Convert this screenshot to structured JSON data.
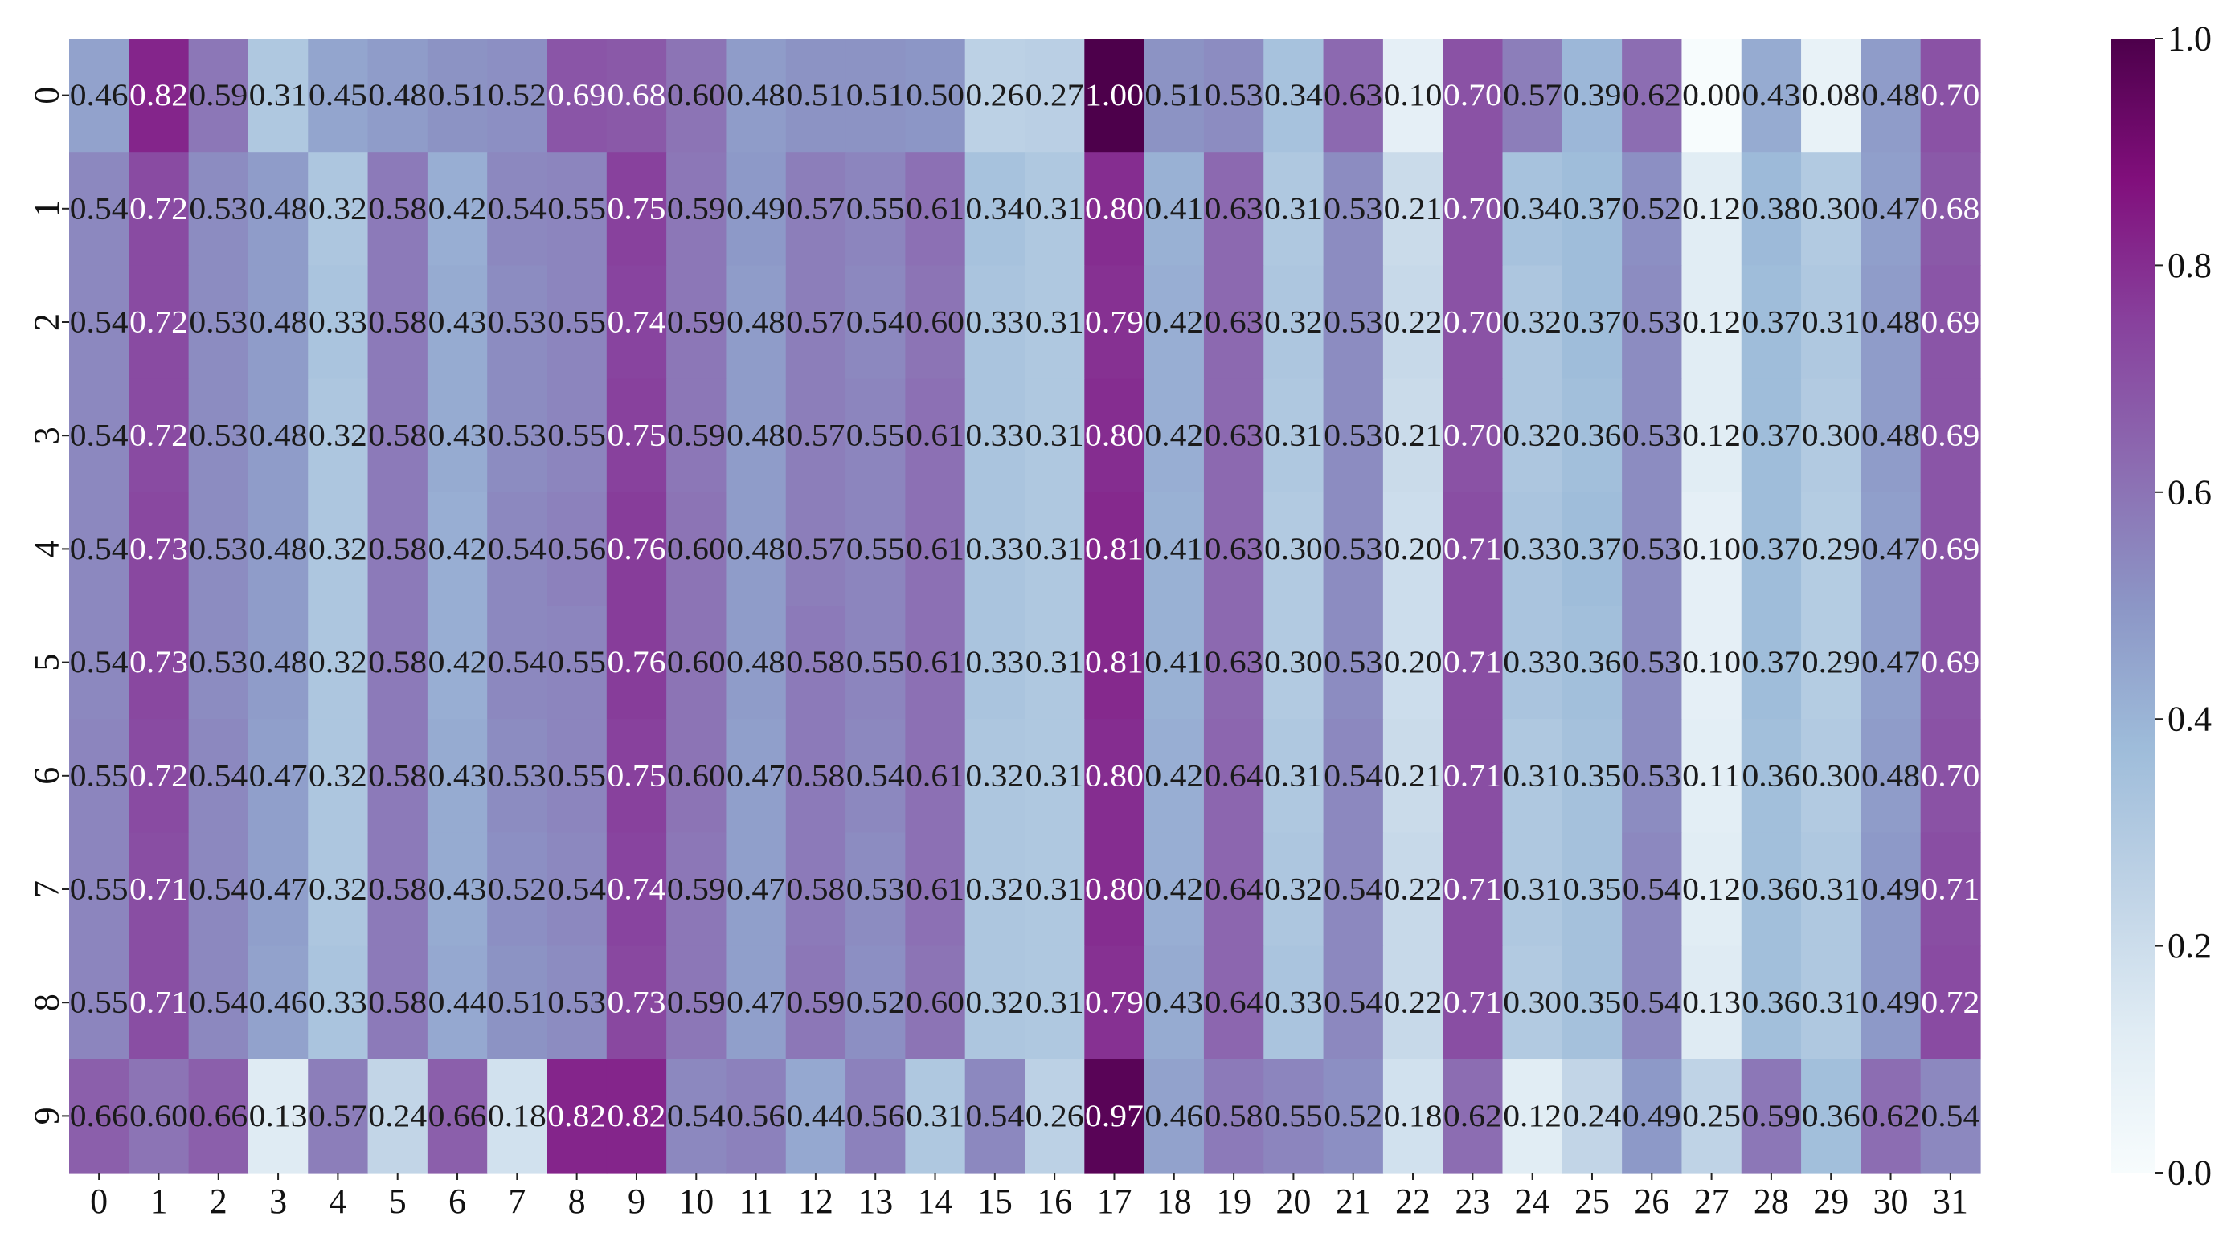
{
  "chart_data": {
    "type": "heatmap",
    "title": "",
    "xlabel": "",
    "ylabel": "",
    "x_categories": [
      "0",
      "1",
      "2",
      "3",
      "4",
      "5",
      "6",
      "7",
      "8",
      "9",
      "10",
      "11",
      "12",
      "13",
      "14",
      "15",
      "16",
      "17",
      "18",
      "19",
      "20",
      "21",
      "22",
      "23",
      "24",
      "25",
      "26",
      "27",
      "28",
      "29",
      "30",
      "31"
    ],
    "y_categories": [
      "0",
      "1",
      "2",
      "3",
      "4",
      "5",
      "6",
      "7",
      "8",
      "9"
    ],
    "values": [
      [
        0.46,
        0.82,
        0.59,
        0.31,
        0.45,
        0.48,
        0.51,
        0.52,
        0.69,
        0.68,
        0.6,
        0.48,
        0.51,
        0.51,
        0.5,
        0.26,
        0.27,
        1.0,
        0.51,
        0.53,
        0.34,
        0.63,
        0.1,
        0.7,
        0.57,
        0.39,
        0.62,
        0.0,
        0.43,
        0.08,
        0.48,
        0.7
      ],
      [
        0.54,
        0.72,
        0.53,
        0.48,
        0.32,
        0.58,
        0.42,
        0.54,
        0.55,
        0.75,
        0.59,
        0.49,
        0.57,
        0.55,
        0.61,
        0.34,
        0.31,
        0.8,
        0.41,
        0.63,
        0.31,
        0.53,
        0.21,
        0.7,
        0.34,
        0.37,
        0.52,
        0.12,
        0.38,
        0.3,
        0.47,
        0.68
      ],
      [
        0.54,
        0.72,
        0.53,
        0.48,
        0.33,
        0.58,
        0.43,
        0.53,
        0.55,
        0.74,
        0.59,
        0.48,
        0.57,
        0.54,
        0.6,
        0.33,
        0.31,
        0.79,
        0.42,
        0.63,
        0.32,
        0.53,
        0.22,
        0.7,
        0.32,
        0.37,
        0.53,
        0.12,
        0.37,
        0.31,
        0.48,
        0.69
      ],
      [
        0.54,
        0.72,
        0.53,
        0.48,
        0.32,
        0.58,
        0.43,
        0.53,
        0.55,
        0.75,
        0.59,
        0.48,
        0.57,
        0.55,
        0.61,
        0.33,
        0.31,
        0.8,
        0.42,
        0.63,
        0.31,
        0.53,
        0.21,
        0.7,
        0.32,
        0.36,
        0.53,
        0.12,
        0.37,
        0.3,
        0.48,
        0.69
      ],
      [
        0.54,
        0.73,
        0.53,
        0.48,
        0.32,
        0.58,
        0.42,
        0.54,
        0.56,
        0.76,
        0.6,
        0.48,
        0.57,
        0.55,
        0.61,
        0.33,
        0.31,
        0.81,
        0.41,
        0.63,
        0.3,
        0.53,
        0.2,
        0.71,
        0.33,
        0.37,
        0.53,
        0.1,
        0.37,
        0.29,
        0.47,
        0.69
      ],
      [
        0.54,
        0.73,
        0.53,
        0.48,
        0.32,
        0.58,
        0.42,
        0.54,
        0.55,
        0.76,
        0.6,
        0.48,
        0.58,
        0.55,
        0.61,
        0.33,
        0.31,
        0.81,
        0.41,
        0.63,
        0.3,
        0.53,
        0.2,
        0.71,
        0.33,
        0.36,
        0.53,
        0.1,
        0.37,
        0.29,
        0.47,
        0.69
      ],
      [
        0.55,
        0.72,
        0.54,
        0.47,
        0.32,
        0.58,
        0.43,
        0.53,
        0.55,
        0.75,
        0.6,
        0.47,
        0.58,
        0.54,
        0.61,
        0.32,
        0.31,
        0.8,
        0.42,
        0.64,
        0.31,
        0.54,
        0.21,
        0.71,
        0.31,
        0.35,
        0.53,
        0.11,
        0.36,
        0.3,
        0.48,
        0.7
      ],
      [
        0.55,
        0.71,
        0.54,
        0.47,
        0.32,
        0.58,
        0.43,
        0.52,
        0.54,
        0.74,
        0.59,
        0.47,
        0.58,
        0.53,
        0.61,
        0.32,
        0.31,
        0.8,
        0.42,
        0.64,
        0.32,
        0.54,
        0.22,
        0.71,
        0.31,
        0.35,
        0.54,
        0.12,
        0.36,
        0.31,
        0.49,
        0.71
      ],
      [
        0.55,
        0.71,
        0.54,
        0.46,
        0.33,
        0.58,
        0.44,
        0.51,
        0.53,
        0.73,
        0.59,
        0.47,
        0.59,
        0.52,
        0.6,
        0.32,
        0.31,
        0.79,
        0.43,
        0.64,
        0.33,
        0.54,
        0.22,
        0.71,
        0.3,
        0.35,
        0.54,
        0.13,
        0.36,
        0.31,
        0.49,
        0.72
      ],
      [
        0.66,
        0.6,
        0.66,
        0.13,
        0.57,
        0.24,
        0.66,
        0.18,
        0.82,
        0.82,
        0.54,
        0.56,
        0.44,
        0.56,
        0.31,
        0.54,
        0.26,
        0.97,
        0.46,
        0.58,
        0.55,
        0.52,
        0.18,
        0.62,
        0.12,
        0.24,
        0.49,
        0.25,
        0.59,
        0.36,
        0.62,
        0.54
      ]
    ],
    "value_range": [
      0.0,
      1.0
    ],
    "annotations": "cell values shown with two decimals",
    "colormap": "BuPu",
    "colormap_stops": [
      "#f7fcfd",
      "#e0ecf4",
      "#bfd3e6",
      "#9ebcda",
      "#8c96c6",
      "#8c6bb1",
      "#88419d",
      "#810f7c",
      "#4d004b"
    ],
    "colorbar": {
      "ticks": [
        0.0,
        0.2,
        0.4,
        0.6,
        0.8,
        1.0
      ],
      "tick_labels": [
        "0.0",
        "0.2",
        "0.4",
        "0.6",
        "0.8",
        "1.0"
      ]
    },
    "grid": false,
    "legend": "colorbar-right"
  }
}
